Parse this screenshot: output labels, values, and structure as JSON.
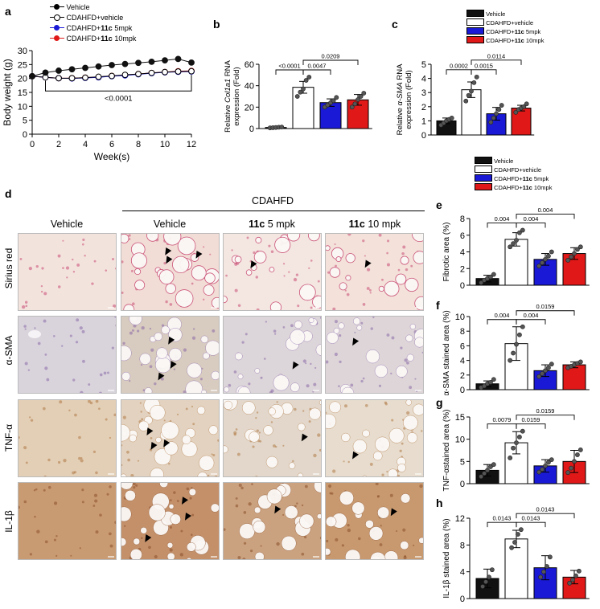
{
  "colors": {
    "vehicle": "#111111",
    "cdahfd_vehicle": "#ffffff",
    "c11_5": "#1a1ad6",
    "c11_10": "#e01818"
  },
  "legend": {
    "vehicle": "Vehicle",
    "cdahfd_vehicle": "CDAHFD+vehicle",
    "c11_5_prefix": "CDAHFD+",
    "c11_5_bold": "11c",
    "c11_5_suffix": " 5mpk",
    "c11_10_prefix": "CDAHFD+",
    "c11_10_bold": "11c",
    "c11_10_suffix": " 10mpk"
  },
  "panel_letters": [
    "a",
    "b",
    "c",
    "d",
    "e",
    "f",
    "g",
    "h"
  ],
  "panel_d": {
    "group_label": "CDAHFD",
    "columns": [
      {
        "plain": "Vehicle"
      },
      {
        "plain": "Vehicle"
      },
      {
        "bold": "11c",
        "plain": " 5 mpk"
      },
      {
        "bold": "11c",
        "plain": " 10 mpk"
      }
    ],
    "rows": [
      "Sirius red",
      "α-SMA",
      "TNF-α",
      "IL-1β"
    ]
  },
  "chart_data": [
    {
      "id": "a",
      "type": "line",
      "xlabel": "Week(s)",
      "ylabel": "Body weight (g)",
      "xlim": [
        0,
        12
      ],
      "ylim": [
        0,
        30
      ],
      "xticks": [
        0,
        2,
        4,
        6,
        8,
        10,
        12
      ],
      "yticks": [
        0,
        5,
        10,
        15,
        20,
        25,
        30
      ],
      "x": [
        0,
        1,
        2,
        3,
        4,
        5,
        6,
        7,
        8,
        9,
        10,
        11,
        12
      ],
      "series": [
        {
          "name": "Vehicle",
          "values": [
            20.8,
            22.1,
            22.8,
            23.3,
            23.8,
            24.3,
            24.8,
            25.2,
            25.6,
            26.0,
            26.5,
            27.0,
            25.7
          ]
        },
        {
          "name": "CDAHFD+vehicle",
          "values": [
            20.8,
            20.4,
            20.1,
            20.1,
            20.3,
            20.6,
            20.9,
            21.3,
            21.6,
            22.0,
            22.3,
            22.5,
            22.6
          ]
        },
        {
          "name": "CDAHFD+11c 5mpk",
          "values": [
            20.8,
            20.4,
            20.1,
            20.0,
            20.2,
            20.4,
            20.8,
            21.1,
            21.5,
            21.9,
            22.2,
            22.4,
            22.5
          ]
        },
        {
          "name": "CDAHFD+11c 10mpk",
          "values": [
            20.8,
            20.4,
            20.1,
            20.1,
            20.3,
            20.5,
            20.9,
            21.2,
            21.6,
            22.0,
            22.3,
            22.6,
            22.7
          ]
        }
      ],
      "annotation": "<0.0001"
    },
    {
      "id": "b",
      "type": "bar",
      "ylabel_line1": "Relative ",
      "ylabel_gene": "Col1a1",
      "ylabel_line1_end": " RNA",
      "ylabel_line2": "expression (Fold)",
      "ylim": [
        0,
        60
      ],
      "yticks": [
        0,
        20,
        40,
        60
      ],
      "categories": [
        "Vehicle",
        "CDAHFD+vehicle",
        "CDAHFD+11c 5mpk",
        "CDAHFD+11c 10mpk"
      ],
      "values": [
        1,
        38.5,
        24.2,
        26.8
      ],
      "errors": [
        0.4,
        5.5,
        3.5,
        5.0
      ],
      "points": [
        [
          0.6,
          0.8,
          1.0,
          1.2,
          1.4
        ],
        [
          30,
          34,
          37,
          45,
          48
        ],
        [
          20,
          22,
          24,
          26,
          29
        ],
        [
          20,
          23,
          27,
          30,
          33
        ]
      ],
      "brackets": [
        {
          "from": 0,
          "to": 1,
          "label": "<0.0001",
          "level": 0
        },
        {
          "from": 1,
          "to": 2,
          "label": "0.0047",
          "level": 0
        },
        {
          "from": 1,
          "to": 3,
          "label": "0.0209",
          "level": 1
        }
      ]
    },
    {
      "id": "c",
      "type": "bar",
      "ylabel_line1": "Relative ",
      "ylabel_gene": "α-SMA",
      "ylabel_line1_end": " RNA",
      "ylabel_line2": "expression (Fold)",
      "ylim": [
        0,
        5
      ],
      "yticks": [
        0,
        1,
        2,
        3,
        4,
        5
      ],
      "categories": [
        "Vehicle",
        "CDAHFD+vehicle",
        "CDAHFD+11c 5mpk",
        "CDAHFD+11c 10mpk"
      ],
      "values": [
        1.0,
        3.2,
        1.5,
        1.9
      ],
      "errors": [
        0.2,
        0.55,
        0.45,
        0.2
      ],
      "points": [
        [
          0.7,
          0.85,
          1.0,
          1.1,
          1.2
        ],
        [
          2.4,
          2.8,
          3.1,
          3.7,
          4.1
        ],
        [
          0.9,
          1.2,
          1.5,
          1.8,
          2.1
        ],
        [
          1.6,
          1.8,
          1.9,
          2.0,
          2.2
        ]
      ],
      "brackets": [
        {
          "from": 0,
          "to": 1,
          "label": "0.0002",
          "level": 0
        },
        {
          "from": 1,
          "to": 2,
          "label": "0.0015",
          "level": 0
        },
        {
          "from": 1,
          "to": 3,
          "label": "0.0114",
          "level": 1
        }
      ]
    },
    {
      "id": "e",
      "type": "bar",
      "ylabel": "Fibrotic area (%)",
      "ylim": [
        0,
        8
      ],
      "yticks": [
        0,
        2,
        4,
        6,
        8
      ],
      "categories": [
        "Vehicle",
        "CDAHFD+vehicle",
        "CDAHFD+11c 5mpk",
        "CDAHFD+11c 10mpk"
      ],
      "values": [
        0.8,
        5.5,
        3.1,
        3.8
      ],
      "errors": [
        0.4,
        0.8,
        0.7,
        0.7
      ],
      "points": [
        [
          0.3,
          0.6,
          0.8,
          1.0,
          1.3
        ],
        [
          4.6,
          5.0,
          5.4,
          6.3,
          6.6
        ],
        [
          2.3,
          2.7,
          3.1,
          3.5,
          4.0
        ],
        [
          3.0,
          3.4,
          3.8,
          4.3,
          4.6
        ]
      ],
      "brackets": [
        {
          "from": 0,
          "to": 1,
          "label": "0.004",
          "level": 0
        },
        {
          "from": 1,
          "to": 2,
          "label": "0.004",
          "level": 0
        },
        {
          "from": 1,
          "to": 3,
          "label": "0.004",
          "level": 1
        }
      ]
    },
    {
      "id": "f",
      "type": "bar",
      "ylabel": "α-SMA stained area (%)",
      "ylim": [
        0,
        10
      ],
      "yticks": [
        0,
        2,
        4,
        6,
        8,
        10
      ],
      "categories": [
        "Vehicle",
        "CDAHFD+vehicle",
        "CDAHFD+11c 5mpk",
        "CDAHFD+11c 10mpk"
      ],
      "values": [
        0.8,
        6.3,
        2.6,
        3.4
      ],
      "errors": [
        0.4,
        2.3,
        0.8,
        0.4
      ],
      "points": [
        [
          0.3,
          0.5,
          0.8,
          1.0,
          1.4
        ],
        [
          4.0,
          5.0,
          6.2,
          7.5,
          8.6
        ],
        [
          1.8,
          2.2,
          2.6,
          3.0,
          3.5
        ],
        [
          3.0,
          3.2,
          3.4,
          3.6,
          3.8
        ]
      ],
      "brackets": [
        {
          "from": 0,
          "to": 1,
          "label": "0.004",
          "level": 0
        },
        {
          "from": 1,
          "to": 2,
          "label": "0.004",
          "level": 0
        },
        {
          "from": 1,
          "to": 3,
          "label": "0.0159",
          "level": 1
        }
      ]
    },
    {
      "id": "g",
      "type": "bar",
      "ylabel": "TNF-αstained area (%)",
      "ylim": [
        0,
        15
      ],
      "yticks": [
        0,
        5,
        10,
        15
      ],
      "categories": [
        "Vehicle",
        "CDAHFD+vehicle",
        "CDAHFD+11c 5mpk",
        "CDAHFD+11c 10mpk"
      ],
      "values": [
        3.0,
        9.2,
        4.0,
        5.0
      ],
      "errors": [
        1.3,
        2.5,
        1.4,
        2.5
      ],
      "points": [
        [
          1.6,
          2.3,
          3.0,
          3.8,
          4.3
        ],
        [
          5.8,
          8.0,
          9.2,
          10.5,
          11.8
        ],
        [
          2.6,
          3.2,
          4.0,
          4.8,
          5.4
        ],
        [
          2.5,
          3.5,
          5.0,
          6.5,
          7.6
        ]
      ],
      "brackets": [
        {
          "from": 0,
          "to": 1,
          "label": "0.0079",
          "level": 0
        },
        {
          "from": 1,
          "to": 2,
          "label": "0.0159",
          "level": 0
        },
        {
          "from": 1,
          "to": 3,
          "label": "0.0159",
          "level": 1
        }
      ]
    },
    {
      "id": "h",
      "type": "bar",
      "ylabel": "IL-1β stained area (%)",
      "ylim": [
        0,
        12
      ],
      "yticks": [
        0,
        4,
        8,
        12
      ],
      "categories": [
        "Vehicle",
        "CDAHFD+vehicle",
        "CDAHFD+11c 5mpk",
        "CDAHFD+11c 10mpk"
      ],
      "values": [
        3.0,
        8.9,
        4.6,
        3.2
      ],
      "errors": [
        1.4,
        1.3,
        1.8,
        1.0
      ],
      "points": [
        [
          1.8,
          2.5,
          3.2,
          4.3
        ],
        [
          7.6,
          8.4,
          9.6,
          10.3
        ],
        [
          3.2,
          4.0,
          4.8,
          6.2
        ],
        [
          2.3,
          2.8,
          3.4,
          4.1
        ]
      ],
      "brackets": [
        {
          "from": 0,
          "to": 1,
          "label": "0.0143",
          "level": 0
        },
        {
          "from": 1,
          "to": 2,
          "label": "0.0143",
          "level": 0
        },
        {
          "from": 1,
          "to": 3,
          "label": "0.0143",
          "level": 1
        }
      ]
    }
  ]
}
